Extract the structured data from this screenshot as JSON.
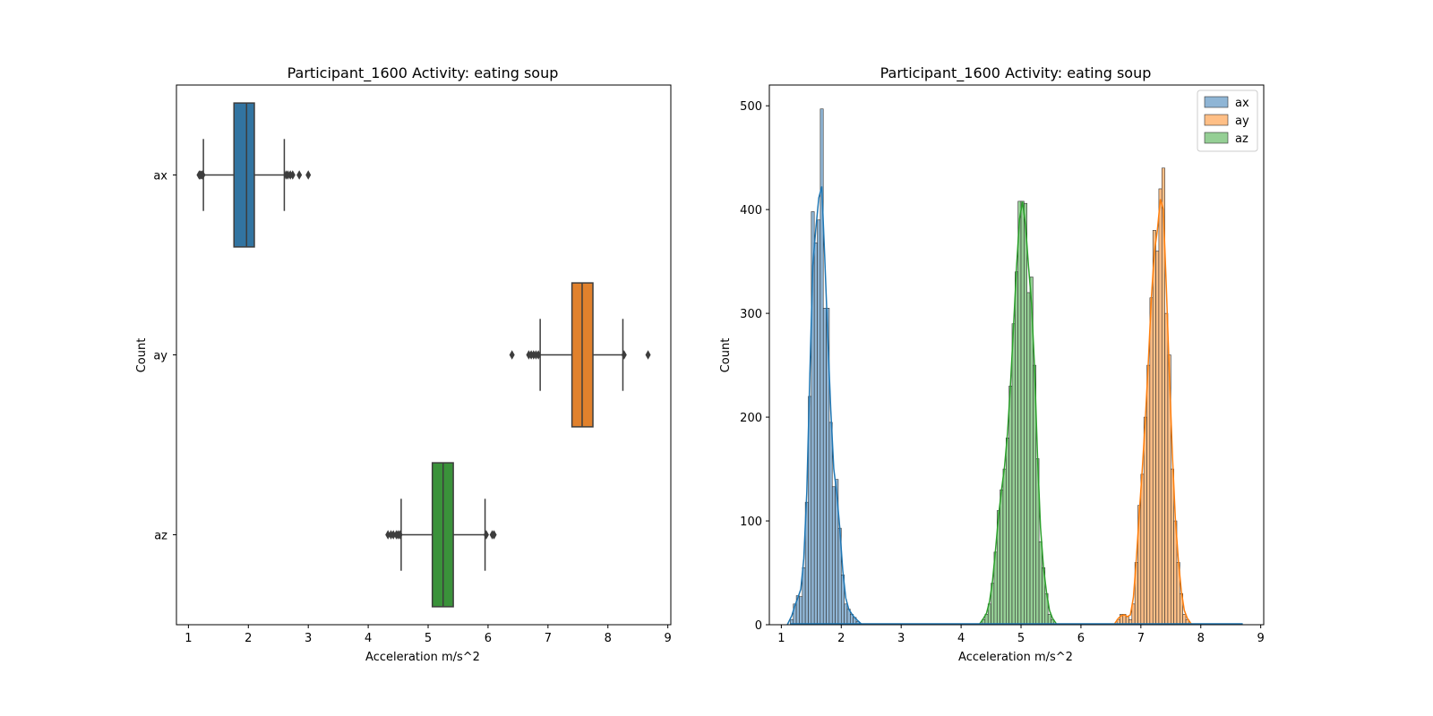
{
  "chart_data": [
    {
      "type": "boxplot",
      "title": "Participant_1600  Activity: eating soup",
      "xlabel": "Acceleration m/s^2",
      "ylabel": "Count",
      "xlim": [
        0.8,
        9.05
      ],
      "xticks": [
        1,
        2,
        3,
        4,
        5,
        6,
        7,
        8,
        9
      ],
      "orientation": "horizontal",
      "series": [
        {
          "name": "ax",
          "color": "#3274a1",
          "whisker_low": 1.25,
          "q1": 1.76,
          "median": 1.97,
          "q3": 2.1,
          "whisker_high": 2.6,
          "outliers": [
            1.18,
            1.2,
            1.22,
            1.24,
            2.63,
            2.66,
            2.7,
            2.74,
            2.85,
            3.0
          ]
        },
        {
          "name": "ay",
          "color": "#e1812c",
          "whisker_low": 6.87,
          "q1": 7.4,
          "median": 7.57,
          "q3": 7.75,
          "whisker_high": 8.25,
          "outliers": [
            6.4,
            6.68,
            6.72,
            6.76,
            6.8,
            6.84,
            8.27,
            8.67
          ]
        },
        {
          "name": "az",
          "color": "#3a923a",
          "whisker_low": 4.55,
          "q1": 5.07,
          "median": 5.25,
          "q3": 5.42,
          "whisker_high": 5.95,
          "outliers": [
            4.33,
            4.38,
            4.42,
            4.47,
            4.5,
            4.53,
            5.97,
            6.07,
            6.1
          ]
        }
      ]
    },
    {
      "type": "histogram",
      "title": "Participant_1600  Activity: eating soup",
      "xlabel": "Acceleration m/s^2",
      "ylabel": "Count",
      "xlim": [
        0.8,
        9.05
      ],
      "ylim": [
        0,
        520
      ],
      "xticks": [
        1,
        2,
        3,
        4,
        5,
        6,
        7,
        8,
        9
      ],
      "yticks": [
        0,
        100,
        200,
        300,
        400,
        500
      ],
      "kde": true,
      "legend_position": "top-right",
      "series": [
        {
          "name": "ax",
          "fill": "#8fb5d5",
          "line": "#1f77b4",
          "bin_start": 1.15,
          "bin_width": 0.05,
          "counts": [
            5,
            20,
            28,
            27,
            55,
            118,
            220,
            398,
            368,
            390,
            497,
            305,
            305,
            195,
            133,
            140,
            93,
            48,
            20,
            15,
            10,
            7,
            3
          ]
        },
        {
          "name": "ay",
          "fill": "#ffbf86",
          "line": "#ff7f0e",
          "bin_start": 6.6,
          "bin_width": 0.05,
          "counts": [
            5,
            10,
            10,
            8,
            5,
            20,
            60,
            115,
            145,
            200,
            250,
            315,
            380,
            360,
            420,
            440,
            300,
            260,
            150,
            100,
            60,
            30,
            10,
            5
          ]
        },
        {
          "name": "az",
          "fill": "#95cf95",
          "line": "#2ca02c",
          "bin_start": 4.35,
          "bin_width": 0.05,
          "counts": [
            5,
            10,
            20,
            40,
            70,
            110,
            130,
            150,
            180,
            230,
            290,
            340,
            408,
            408,
            406,
            320,
            335,
            250,
            160,
            80,
            55,
            30,
            10,
            5
          ]
        }
      ]
    }
  ]
}
